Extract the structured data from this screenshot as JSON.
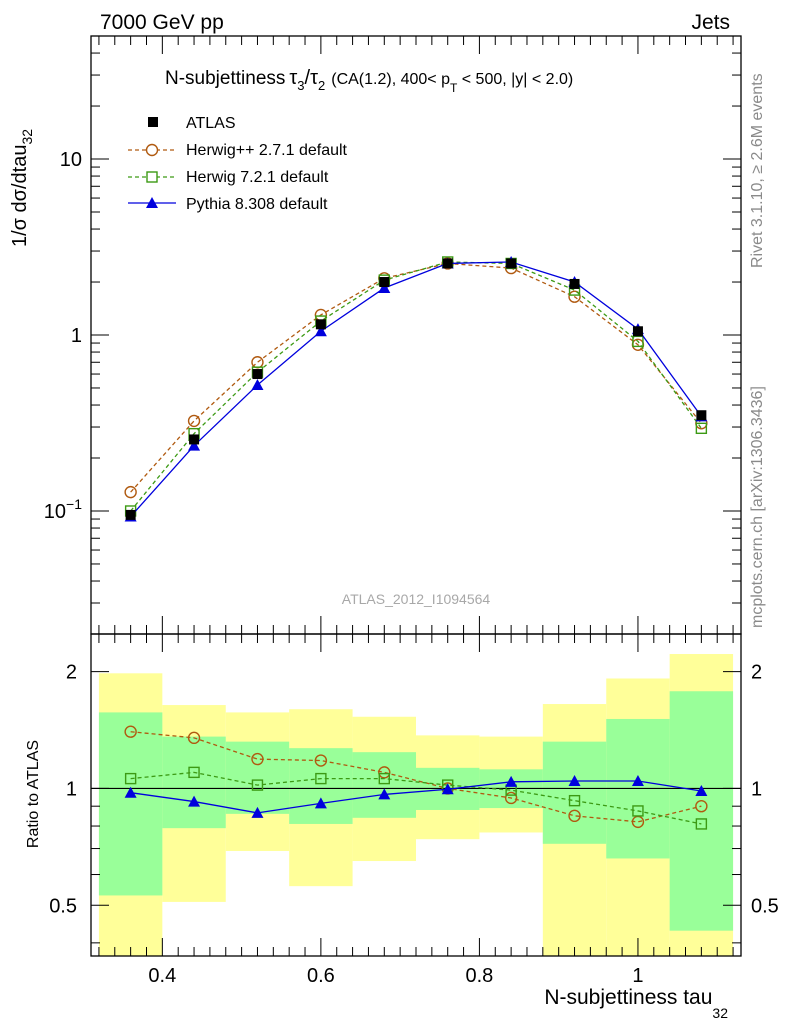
{
  "header": {
    "energy_label": "7000 GeV pp",
    "category_label": "Jets"
  },
  "side": {
    "rivet": "Rivet 3.1.10, ≥ 2.6M events",
    "mcplots": "mcplots.cern.ch [arXiv:1306.3436]"
  },
  "chart_data": [
    {
      "type": "scatter",
      "panel": "main",
      "title_parts": {
        "prefix": "N-subjettiness",
        "tau_a": "τ",
        "tau_a_sub": "3",
        "slash": "/",
        "tau_b": "τ",
        "tau_b_sub": "2",
        "selection_1": "(CA(1.2), 400< p",
        "pt_sub": "T",
        "selection_2": " < 500, |y| < 2.0)"
      },
      "ylabel": {
        "main": "1/σ dσ/dtau",
        "sub": "32"
      },
      "watermark": "ATLAS_2012_I1094564",
      "yscale": "log",
      "ylim": [
        0.02,
        50
      ],
      "xlim": [
        0.31,
        1.13
      ],
      "yticks": [
        {
          "value": 0.1,
          "base": "10",
          "exp": "−1"
        },
        {
          "value": 1,
          "base": "1",
          "exp": ""
        },
        {
          "value": 10,
          "base": "10",
          "exp": ""
        }
      ],
      "legend_position": "top-left",
      "x": [
        0.36,
        0.44,
        0.52,
        0.6,
        0.68,
        0.76,
        0.84,
        0.92,
        1.0,
        1.08
      ],
      "bins": [
        0.32,
        0.4,
        0.48,
        0.56,
        0.64,
        0.72,
        0.8,
        0.88,
        0.96,
        1.04,
        1.12
      ],
      "series": [
        {
          "name": "ATLAS",
          "color": "#000000",
          "marker": "filled-square",
          "line": "none",
          "values": [
            0.095,
            0.255,
            0.6,
            1.15,
            2.0,
            2.55,
            2.55,
            1.95,
            1.05,
            0.35
          ]
        },
        {
          "name": "Herwig++ 2.7.1 default",
          "color": "#b05a10",
          "marker": "open-circle",
          "line": "dashed",
          "values": [
            0.128,
            0.325,
            0.7,
            1.3,
            2.1,
            2.55,
            2.4,
            1.65,
            0.88,
            0.315
          ]
        },
        {
          "name": "Herwig 7.2.1 default",
          "color": "#3c9a14",
          "marker": "open-square",
          "line": "dashed",
          "values": [
            0.1,
            0.275,
            0.615,
            1.2,
            2.05,
            2.6,
            2.55,
            1.8,
            0.92,
            0.295
          ]
        },
        {
          "name": "Pythia 8.308 default",
          "color": "#0000dd",
          "marker": "filled-triangle",
          "line": "solid",
          "values": [
            0.093,
            0.235,
            0.52,
            1.05,
            1.85,
            2.55,
            2.6,
            2.0,
            1.08,
            0.345
          ]
        }
      ]
    },
    {
      "type": "line",
      "panel": "ratio",
      "ylabel": "Ratio to ATLAS",
      "xlabel": {
        "main": "N-subjettiness tau",
        "sub": "32"
      },
      "yscale": "log",
      "ylim": [
        0.37,
        2.5
      ],
      "xlim": [
        0.31,
        1.13
      ],
      "yticks": [
        {
          "value": 0.5,
          "label": "0.5"
        },
        {
          "value": 1,
          "label": "1"
        },
        {
          "value": 2,
          "label": "2"
        }
      ],
      "xticks": [
        {
          "value": 0.4,
          "label": "0.4"
        },
        {
          "value": 0.6,
          "label": "0.6"
        },
        {
          "value": 0.8,
          "label": "0.8"
        },
        {
          "value": 1.0,
          "label": "1"
        }
      ],
      "bands": {
        "inner_color": "#99ff99",
        "outer_color": "#ffff99",
        "inner": [
          [
            0.53,
            1.57
          ],
          [
            0.79,
            1.36
          ],
          [
            0.86,
            1.32
          ],
          [
            0.81,
            1.27
          ],
          [
            0.84,
            1.24
          ],
          [
            0.88,
            1.13
          ],
          [
            0.89,
            1.12
          ],
          [
            0.72,
            1.32
          ],
          [
            0.66,
            1.51
          ],
          [
            0.43,
            1.78
          ]
        ],
        "outer": [
          [
            0.36,
            1.98
          ],
          [
            0.51,
            1.64
          ],
          [
            0.69,
            1.57
          ],
          [
            0.56,
            1.6
          ],
          [
            0.65,
            1.53
          ],
          [
            0.74,
            1.37
          ],
          [
            0.77,
            1.36
          ],
          [
            0.36,
            1.65
          ],
          [
            0.36,
            1.92
          ],
          [
            0.36,
            2.22
          ]
        ]
      },
      "x": [
        0.36,
        0.44,
        0.52,
        0.6,
        0.68,
        0.76,
        0.84,
        0.92,
        1.0,
        1.08
      ],
      "series": [
        {
          "name": "Herwig++ 2.7.1 default",
          "color": "#b05a10",
          "marker": "open-circle",
          "line": "dashed",
          "values": [
            1.4,
            1.35,
            1.19,
            1.18,
            1.1,
            1.0,
            0.945,
            0.85,
            0.82,
            0.9
          ]
        },
        {
          "name": "Herwig 7.2.1 default",
          "color": "#3c9a14",
          "marker": "open-square",
          "line": "dashed",
          "values": [
            1.06,
            1.1,
            1.02,
            1.06,
            1.06,
            1.02,
            0.99,
            0.93,
            0.875,
            0.81
          ]
        },
        {
          "name": "Pythia 8.308 default",
          "color": "#0000dd",
          "marker": "filled-triangle",
          "line": "solid",
          "values": [
            0.975,
            0.925,
            0.865,
            0.915,
            0.965,
            0.995,
            1.04,
            1.045,
            1.045,
            0.985
          ]
        }
      ]
    }
  ]
}
